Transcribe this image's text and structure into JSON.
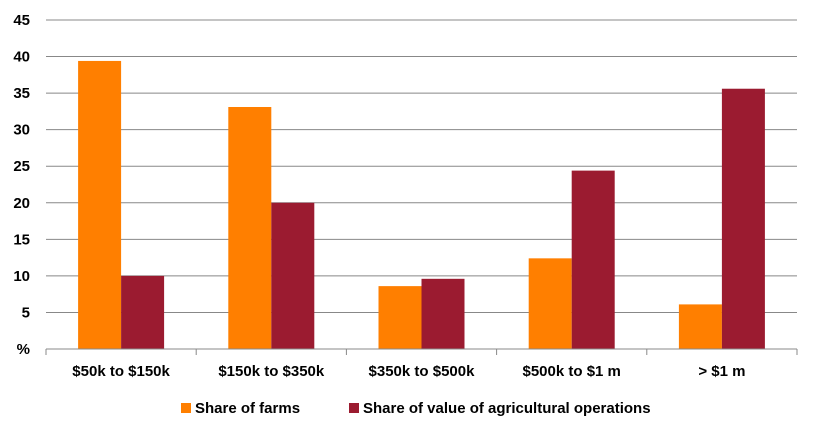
{
  "chart_data": {
    "type": "bar",
    "categories": [
      "$50k to $150k",
      "$150k to $350k",
      "$350k to $500k",
      "$500k to $1 m",
      "> $1 m"
    ],
    "series": [
      {
        "name": "Share of farms",
        "color": "#FF7F00",
        "values": [
          39.4,
          33.1,
          8.6,
          12.4,
          6.1
        ]
      },
      {
        "name": "Share of value of agricultural operations",
        "color": "#9B1B30",
        "values": [
          10.0,
          20.0,
          9.6,
          24.4,
          35.6
        ]
      }
    ],
    "y_ticks": [
      "%",
      "5",
      "10",
      "15",
      "20",
      "25",
      "30",
      "35",
      "40",
      "45"
    ],
    "ylim": [
      0,
      45
    ],
    "grid": true,
    "legend_position": "bottom"
  }
}
